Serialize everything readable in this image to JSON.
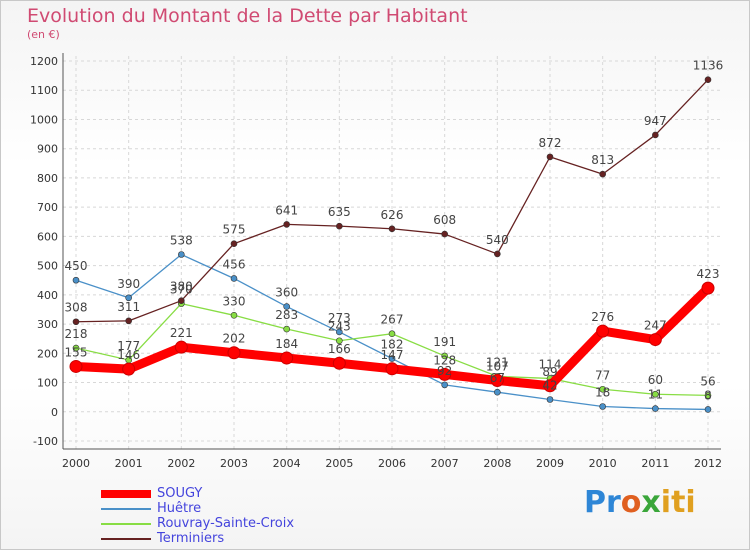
{
  "chart_data": {
    "type": "line",
    "title": "Evolution du Montant de la Dette par Habitant",
    "subtitle": "(en €)",
    "xlabel": "",
    "ylabel": "",
    "x": [
      "2000",
      "2001",
      "2002",
      "2003",
      "2004",
      "2005",
      "2006",
      "2007",
      "2008",
      "2009",
      "2010",
      "2011",
      "2012"
    ],
    "ylim": [
      -100,
      1200
    ],
    "yticks": [
      "-100",
      "0",
      "100",
      "200",
      "300",
      "400",
      "500",
      "600",
      "700",
      "800",
      "900",
      "1000",
      "1100",
      "1200"
    ],
    "grid": true,
    "legend_position": "bottom-left",
    "series": [
      {
        "name": "SOUGY",
        "color": "#ff0000",
        "values": [
          155,
          146,
          221,
          202,
          184,
          166,
          147,
          128,
          107,
          89,
          276,
          247,
          423
        ],
        "labels": [
          "155",
          "146",
          "221",
          "202",
          "184",
          "166",
          "147",
          "128",
          "107",
          "89",
          "276",
          "247",
          "423"
        ]
      },
      {
        "name": "Huêtre",
        "color": "#4a90c8",
        "values": [
          450,
          390,
          538,
          456,
          360,
          273,
          182,
          92,
          67,
          42,
          18,
          11,
          8
        ],
        "labels": [
          "450",
          "390",
          "538",
          "456",
          "360",
          "273",
          "182",
          "92",
          "67",
          "42",
          "18",
          "11",
          "8"
        ]
      },
      {
        "name": "Rouvray-Sainte-Croix",
        "color": "#88dd44",
        "values": [
          218,
          177,
          370,
          330,
          283,
          243,
          267,
          191,
          121,
          114,
          77,
          60,
          56
        ],
        "labels": [
          "218",
          "177",
          "370",
          "330",
          "283",
          "243",
          "267",
          "191",
          "121",
          "114",
          "77",
          "60",
          "56"
        ]
      },
      {
        "name": "Terminiers",
        "color": "#662222",
        "values": [
          308,
          311,
          380,
          575,
          641,
          635,
          626,
          608,
          540,
          872,
          813,
          947,
          1136
        ],
        "labels": [
          "308",
          "311",
          "380",
          "575",
          "641",
          "635",
          "626",
          "608",
          "540",
          "872",
          "813",
          "947",
          "1136"
        ]
      }
    ]
  },
  "logo": {
    "p1": "Pr",
    "p2": "o",
    "p3": "x",
    "p4": "iti"
  }
}
